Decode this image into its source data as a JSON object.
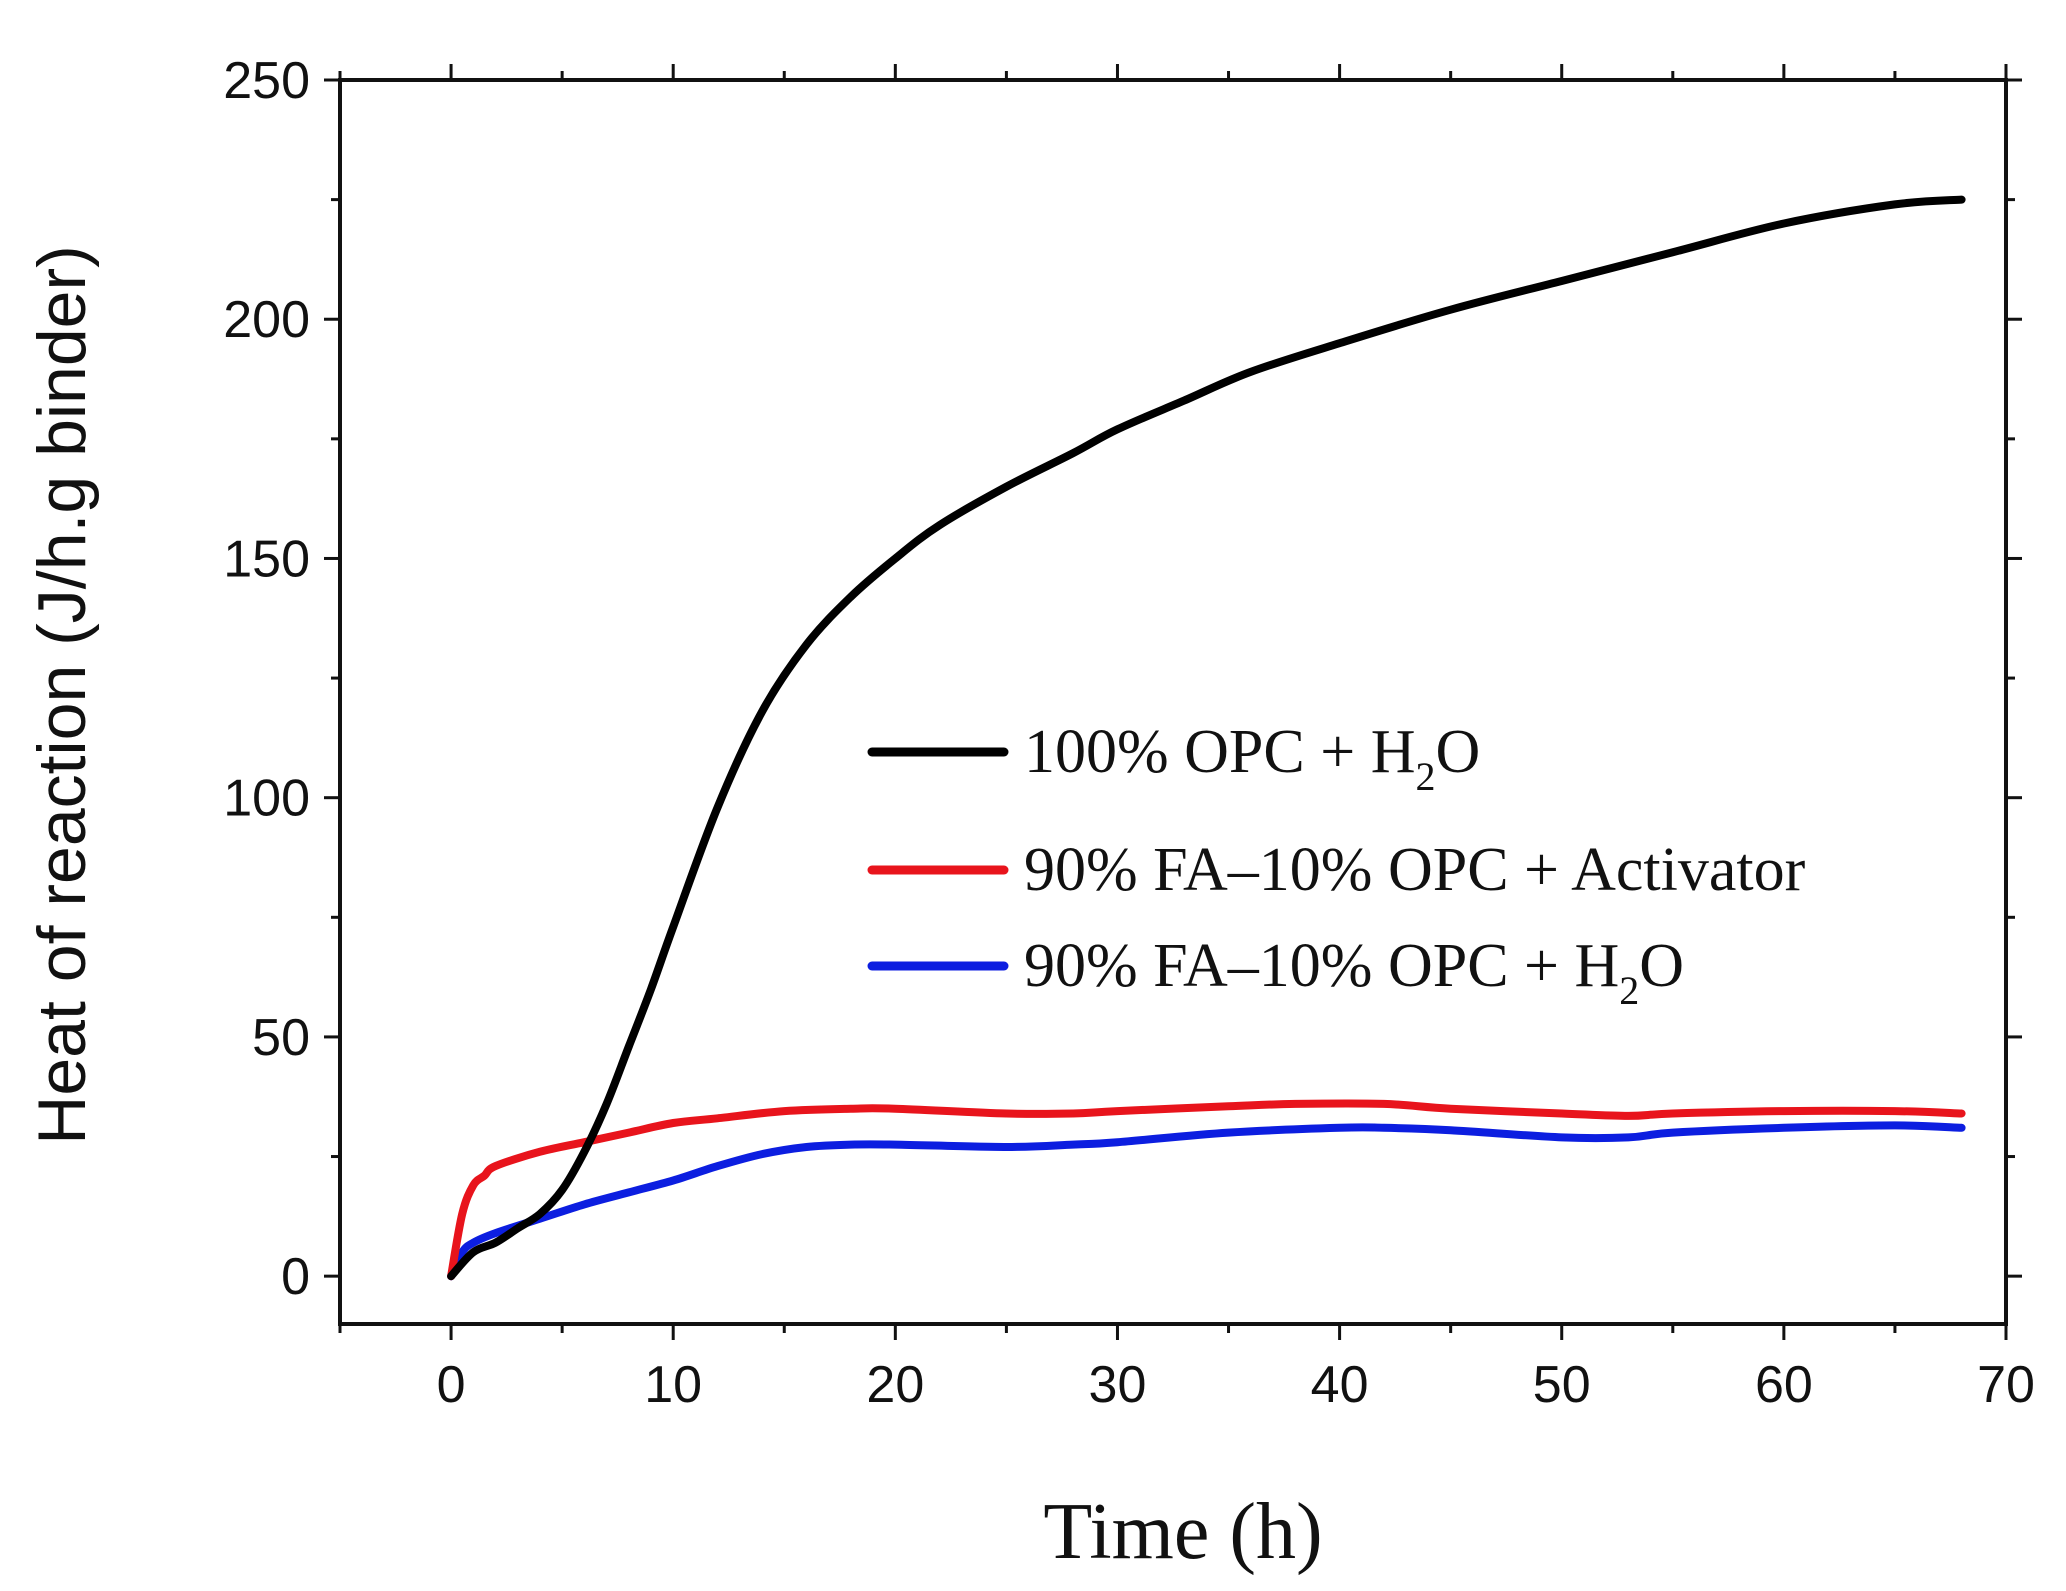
{
  "chart_data": {
    "type": "line",
    "title": "",
    "xlabel": "Time (h)",
    "ylabel": "Heat of reaction (J/h.g binder)",
    "xlim": [
      -5,
      70
    ],
    "ylim": [
      -10,
      250
    ],
    "xticks": [
      0,
      10,
      20,
      30,
      40,
      50,
      60,
      70
    ],
    "yticks": [
      0,
      50,
      100,
      150,
      200,
      250
    ],
    "grid": false,
    "legend_position": "center-right",
    "series": [
      {
        "name": "100% OPC + H2O",
        "label_main": "100% OPC + H",
        "label_sub": "2",
        "label_tail": "O",
        "color": "#000000",
        "x": [
          0,
          1,
          2,
          3,
          4,
          5,
          6,
          7,
          8,
          9,
          10,
          12,
          14,
          16,
          18,
          20,
          22,
          25,
          28,
          30,
          33,
          36,
          40,
          45,
          50,
          55,
          60,
          65,
          68
        ],
        "y": [
          0,
          5,
          7,
          10,
          13,
          18,
          26,
          36,
          48,
          60,
          73,
          98,
          118,
          132,
          142,
          150,
          157,
          165,
          172,
          177,
          183,
          189,
          195,
          202,
          208,
          214,
          220,
          224,
          225
        ]
      },
      {
        "name": "90% FA–10% OPC + Activator",
        "label_main": "90% FA–10% OPC + Activator",
        "label_sub": "",
        "label_tail": "",
        "color": "#e8141c",
        "x": [
          0,
          0.5,
          1,
          1.5,
          2,
          4,
          6,
          8,
          10,
          12,
          15,
          18,
          20,
          25,
          28,
          30,
          35,
          38,
          42,
          45,
          50,
          53,
          55,
          60,
          65,
          68
        ],
        "y": [
          0,
          13,
          19,
          21,
          23,
          26,
          28,
          30,
          32,
          33,
          34.5,
          35,
          35,
          34,
          34,
          34.5,
          35.5,
          36,
          36,
          35,
          34,
          33.5,
          34,
          34.5,
          34.5,
          34
        ]
      },
      {
        "name": "90% FA–10% OPC + H2O",
        "label_main": "90% FA–10% OPC + H",
        "label_sub": "2",
        "label_tail": "O",
        "color": "#0c1ee0",
        "x": [
          0,
          0.5,
          1,
          2,
          4,
          6,
          8,
          10,
          12,
          14,
          16,
          18,
          20,
          25,
          28,
          30,
          35,
          40,
          42,
          45,
          50,
          53,
          55,
          60,
          65,
          68
        ],
        "y": [
          0,
          5,
          7,
          9,
          12,
          15,
          17.5,
          20,
          23,
          25.5,
          27,
          27.5,
          27.5,
          27,
          27.5,
          28,
          30,
          31,
          31,
          30.5,
          29,
          29,
          30,
          31,
          31.5,
          31
        ]
      }
    ]
  }
}
